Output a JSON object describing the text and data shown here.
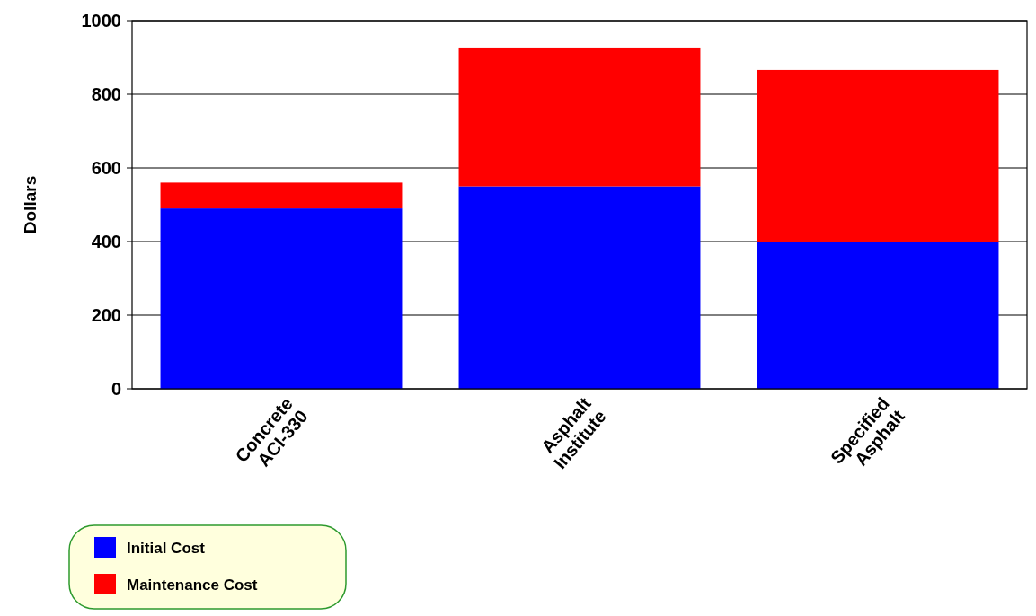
{
  "chart_data": {
    "type": "bar",
    "stacked": true,
    "ylabel": "Dollars",
    "categories": [
      "Concrete\nACI-330",
      "Asphalt\nInstitute",
      "Specified\nAsphalt"
    ],
    "series": [
      {
        "name": "Initial Cost",
        "color": "#0000ff",
        "values": [
          490,
          550,
          400
        ]
      },
      {
        "name": "Maintenance Cost",
        "color": "#ff0000",
        "values": [
          70,
          377,
          466
        ]
      }
    ],
    "ylim": [
      0,
      1000
    ],
    "yticks": [
      0,
      200,
      400,
      600,
      800,
      1000
    ],
    "grid": "y",
    "legend": "bottom left"
  }
}
